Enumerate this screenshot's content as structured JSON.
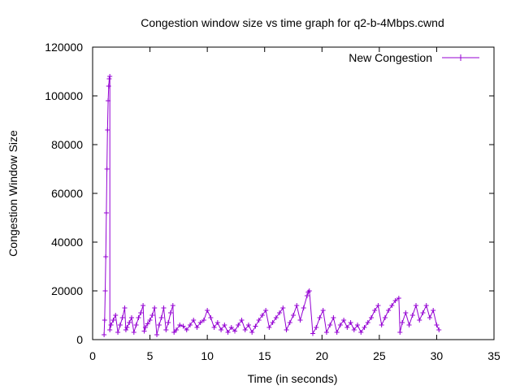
{
  "chart_data": {
    "type": "line",
    "title": "Congestion window size vs time graph for q2-b-4Mbps.cwnd",
    "xlabel": "Time (in seconds)",
    "ylabel": "Congestion Window Size",
    "xlim": [
      0,
      35
    ],
    "ylim": [
      0,
      120000
    ],
    "xticks": [
      "0",
      "5",
      "10",
      "15",
      "20",
      "25",
      "30",
      "35"
    ],
    "yticks": [
      "0",
      "20000",
      "40000",
      "60000",
      "80000",
      "100000",
      "120000"
    ],
    "grid": false,
    "legend_position": "top-right",
    "series": [
      {
        "name": "New Congestion",
        "color": "#9400d3",
        "marker": "plus",
        "x": [
          1.0,
          1.05,
          1.1,
          1.15,
          1.2,
          1.25,
          1.3,
          1.35,
          1.4,
          1.45,
          1.5,
          1.5,
          1.6,
          1.8,
          2.0,
          2.2,
          2.4,
          2.6,
          2.8,
          2.9,
          3.0,
          3.2,
          3.4,
          3.6,
          3.8,
          4.0,
          4.2,
          4.4,
          4.5,
          4.6,
          4.8,
          5.0,
          5.2,
          5.4,
          5.6,
          5.8,
          6.0,
          6.2,
          6.4,
          6.6,
          6.8,
          7.0,
          7.1,
          7.3,
          7.6,
          7.9,
          8.2,
          8.5,
          8.8,
          9.1,
          9.4,
          9.7,
          10.0,
          10.3,
          10.6,
          10.9,
          11.2,
          11.5,
          11.8,
          12.1,
          12.4,
          12.7,
          13.0,
          13.3,
          13.6,
          13.9,
          14.2,
          14.5,
          14.8,
          15.1,
          15.4,
          15.7,
          16.0,
          16.3,
          16.6,
          16.9,
          17.2,
          17.5,
          17.8,
          18.1,
          18.4,
          18.7,
          18.8,
          18.9,
          19.2,
          19.5,
          19.8,
          20.1,
          20.4,
          20.7,
          21.0,
          21.3,
          21.6,
          21.9,
          22.2,
          22.5,
          22.8,
          23.1,
          23.4,
          23.7,
          24.0,
          24.3,
          24.6,
          24.9,
          25.2,
          25.5,
          25.8,
          26.1,
          26.4,
          26.7,
          26.8,
          27.0,
          27.3,
          27.6,
          27.9,
          28.2,
          28.5,
          28.8,
          29.1,
          29.4,
          29.7,
          30.0,
          30.2
        ],
        "y": [
          2000,
          8000,
          20000,
          34000,
          52000,
          70000,
          86000,
          98000,
          104000,
          107000,
          108000,
          4000,
          6000,
          8000,
          10000,
          3000,
          6000,
          9000,
          13000,
          4000,
          5000,
          7000,
          9000,
          3000,
          6000,
          9000,
          11000,
          14000,
          3500,
          5000,
          6500,
          8000,
          10000,
          13000,
          2000,
          6000,
          9000,
          13000,
          4000,
          7000,
          11000,
          14000,
          3000,
          4000,
          6000,
          5500,
          4000,
          6000,
          8000,
          5000,
          7000,
          8000,
          12000,
          9000,
          5000,
          7000,
          4000,
          6000,
          3000,
          5000,
          3500,
          6000,
          8000,
          4000,
          6000,
          3000,
          5500,
          8000,
          10000,
          12000,
          5000,
          7000,
          9000,
          11000,
          13000,
          4000,
          7000,
          10000,
          14000,
          8000,
          13000,
          18000,
          19500,
          20000,
          2500,
          5000,
          9000,
          12000,
          3000,
          6000,
          9000,
          3000,
          6000,
          8000,
          5000,
          7000,
          4000,
          6000,
          3000,
          5000,
          7000,
          9000,
          12000,
          14000,
          6000,
          9000,
          12000,
          14000,
          16000,
          17000,
          3000,
          7000,
          11000,
          6000,
          10000,
          14000,
          8000,
          11000,
          14000,
          9000,
          12000,
          6000,
          4000
        ]
      }
    ]
  }
}
